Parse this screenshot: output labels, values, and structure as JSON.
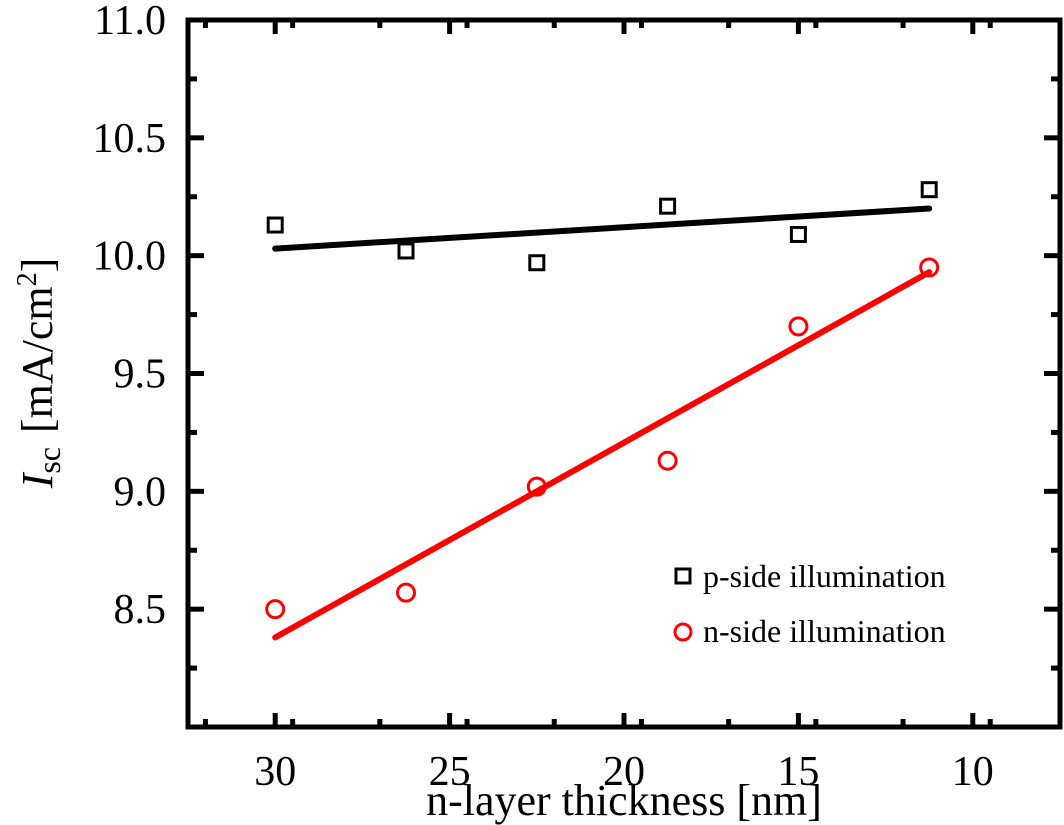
{
  "chart_data": {
    "type": "scatter",
    "xlabel": "n-layer thickness [nm]",
    "ylabel": {
      "symbol": "I",
      "subscript": "sc",
      "unit": "[mA/cm",
      "sup": "2",
      "close": "]"
    },
    "xlim": [
      32.5,
      7.5
    ],
    "x_reversed": true,
    "ylim": [
      8.0,
      11.0
    ],
    "xticks": [
      30,
      25,
      20,
      15,
      10
    ],
    "xtick_labels": [
      "30",
      "25",
      "20",
      "15",
      "10"
    ],
    "yticks": [
      8.5,
      9.0,
      9.5,
      10.0,
      10.5,
      11.0
    ],
    "ytick_labels": [
      "8.5",
      "9.0",
      "9.5",
      "10.0",
      "10.5",
      "11.0"
    ],
    "grid": false,
    "legend_position": "bottom-right",
    "series": [
      {
        "name": "p-side illumination",
        "marker": "square",
        "color": "#000000",
        "x": [
          30,
          26.25,
          22.5,
          18.75,
          15,
          11.25
        ],
        "y": [
          10.13,
          10.02,
          9.97,
          10.21,
          10.09,
          10.28
        ],
        "fit": {
          "x": [
            30,
            11.25
          ],
          "y": [
            10.03,
            10.2
          ]
        }
      },
      {
        "name": "n-side illumination",
        "marker": "circle",
        "color": "#ff0000",
        "x": [
          30,
          26.25,
          22.5,
          18.75,
          15,
          11.25
        ],
        "y": [
          8.5,
          8.57,
          9.02,
          9.13,
          9.7,
          9.95
        ],
        "fit": {
          "x": [
            30,
            11.25
          ],
          "y": [
            8.38,
            9.93
          ]
        }
      }
    ]
  }
}
